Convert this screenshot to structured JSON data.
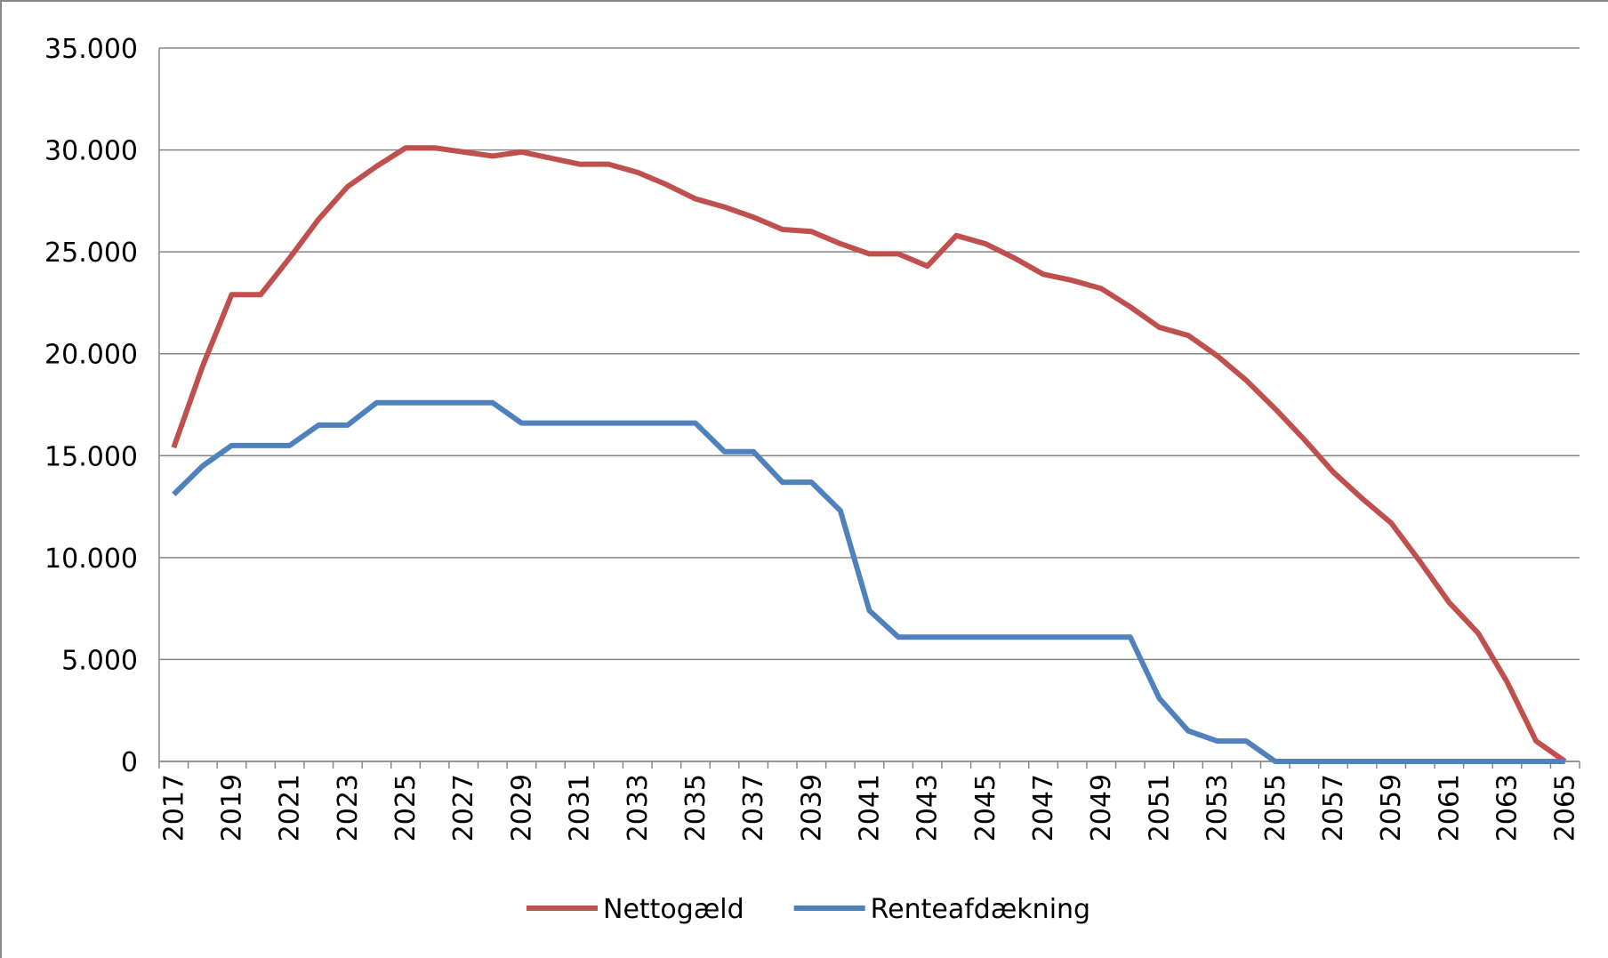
{
  "chart_data": {
    "type": "line",
    "x": [
      2017,
      2018,
      2019,
      2020,
      2021,
      2022,
      2023,
      2024,
      2025,
      2026,
      2027,
      2028,
      2029,
      2030,
      2031,
      2032,
      2033,
      2034,
      2035,
      2036,
      2037,
      2038,
      2039,
      2040,
      2041,
      2042,
      2043,
      2044,
      2045,
      2046,
      2047,
      2048,
      2049,
      2050,
      2051,
      2052,
      2053,
      2054,
      2055,
      2056,
      2057,
      2058,
      2059,
      2060,
      2061,
      2062,
      2063,
      2064,
      2065
    ],
    "xlim": [
      2016.5,
      2065.5
    ],
    "xticks": [
      2017,
      2019,
      2021,
      2023,
      2025,
      2027,
      2029,
      2031,
      2033,
      2035,
      2037,
      2039,
      2041,
      2043,
      2045,
      2047,
      2049,
      2051,
      2053,
      2055,
      2057,
      2059,
      2061,
      2063,
      2065
    ],
    "ylim": [
      0,
      35000
    ],
    "yticks": [
      0,
      {
        "value": 5000,
        "label": "5.000"
      },
      {
        "value": 10000,
        "label": "10.000"
      },
      {
        "value": 15000,
        "label": "15.000"
      },
      {
        "value": 20000,
        "label": "20.000"
      },
      {
        "value": 25000,
        "label": "25.000"
      },
      {
        "value": 30000,
        "label": "30.000"
      },
      {
        "value": 35000,
        "label": "35.000"
      }
    ],
    "grid": true,
    "legend": "bottom",
    "series": [
      {
        "name": "Nettogæld",
        "color": "#c0504d",
        "values": [
          15400,
          19400,
          22900,
          22900,
          24700,
          26600,
          28200,
          29200,
          30100,
          30100,
          29900,
          29700,
          29900,
          29600,
          29300,
          29300,
          28900,
          28300,
          27600,
          27200,
          26700,
          26100,
          26000,
          25400,
          24900,
          24900,
          24300,
          25800,
          25400,
          24700,
          23900,
          23600,
          23200,
          22300,
          21300,
          20900,
          19900,
          18700,
          17300,
          15800,
          14200,
          12900,
          11700,
          9800,
          7800,
          6300,
          3900,
          1000,
          0
        ]
      },
      {
        "name": "Renteafdækning",
        "color": "#4f81bd",
        "values": [
          13100,
          14500,
          15500,
          15500,
          15500,
          16500,
          16500,
          17600,
          17600,
          17600,
          17600,
          17600,
          16600,
          16600,
          16600,
          16600,
          16600,
          16600,
          16600,
          15200,
          15200,
          13700,
          13700,
          12300,
          7400,
          6100,
          6100,
          6100,
          6100,
          6100,
          6100,
          6100,
          6100,
          6100,
          3100,
          1500,
          1000,
          1000,
          0,
          0,
          0,
          0,
          0,
          0,
          0,
          0,
          0,
          0,
          0
        ]
      }
    ]
  }
}
